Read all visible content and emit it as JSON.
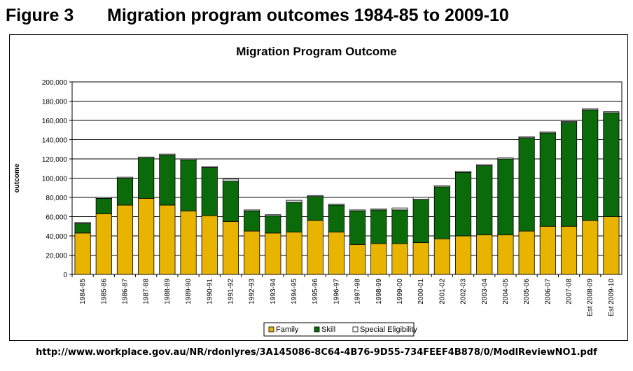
{
  "figure": {
    "label": "Figure 3",
    "title": "Migration program outcomes 1984-85  to 2009-10"
  },
  "source_url": "http://www.workplace.gov.au/NR/rdonlyres/3A145086-8C64-4B76-9D55-734FEEF4B878/0/ModlReviewNO1.pdf",
  "colors": {
    "family": "#E8B400",
    "skill": "#0B6B0B",
    "special": "#FFFFFF",
    "grid": "#000000"
  },
  "chart_data": {
    "type": "bar",
    "stacked": true,
    "title": "Migration Program Outcome",
    "xlabel": "",
    "ylabel": "outcome",
    "ylim": [
      0,
      200000
    ],
    "yticks": [
      0,
      20000,
      40000,
      60000,
      80000,
      100000,
      120000,
      140000,
      160000,
      180000,
      200000
    ],
    "ytick_labels": [
      "0",
      "20,000",
      "40,000",
      "60,000",
      "80,000",
      "100,000",
      "120,000",
      "140,000",
      "160,000",
      "180,000",
      "200,000"
    ],
    "grid": true,
    "legend_position": "bottom",
    "categories": [
      "1984-85",
      "1985-86",
      "1986-87",
      "1987-88",
      "1988-89",
      "1989-90",
      "1990-91",
      "1991-92",
      "1992-93",
      "1993-94",
      "1994-95",
      "1995-96",
      "1996-97",
      "1997-98",
      "1998-99",
      "1999-00",
      "2000-01",
      "2001-02",
      "2002-03",
      "2003-04",
      "2004-05",
      "2005-06",
      "2006-07",
      "2007-08",
      "Est 2008-09",
      "Est 2009-10"
    ],
    "series": [
      {
        "name": "Family",
        "values": [
          43000,
          63000,
          72000,
          79000,
          72000,
          66000,
          61000,
          55000,
          45000,
          43000,
          44000,
          56000,
          44000,
          31000,
          32000,
          32000,
          33000,
          37000,
          40000,
          41000,
          41000,
          45000,
          50000,
          50000,
          56000,
          60000
        ]
      },
      {
        "name": "Skill",
        "values": [
          10000,
          16000,
          28000,
          42000,
          52000,
          53000,
          50000,
          42000,
          21000,
          18000,
          31000,
          25000,
          28000,
          35000,
          35000,
          35000,
          45000,
          54000,
          66000,
          72000,
          79000,
          97000,
          97000,
          108000,
          115000,
          108000
        ]
      },
      {
        "name": "Special Eligibility",
        "values": [
          1000,
          1000,
          1000,
          1000,
          1000,
          1000,
          1000,
          2000,
          1000,
          1000,
          2000,
          1000,
          1000,
          1000,
          1000,
          2000,
          2000,
          1000,
          1000,
          1000,
          1000,
          1000,
          1000,
          1000,
          1000,
          1000
        ]
      }
    ]
  }
}
